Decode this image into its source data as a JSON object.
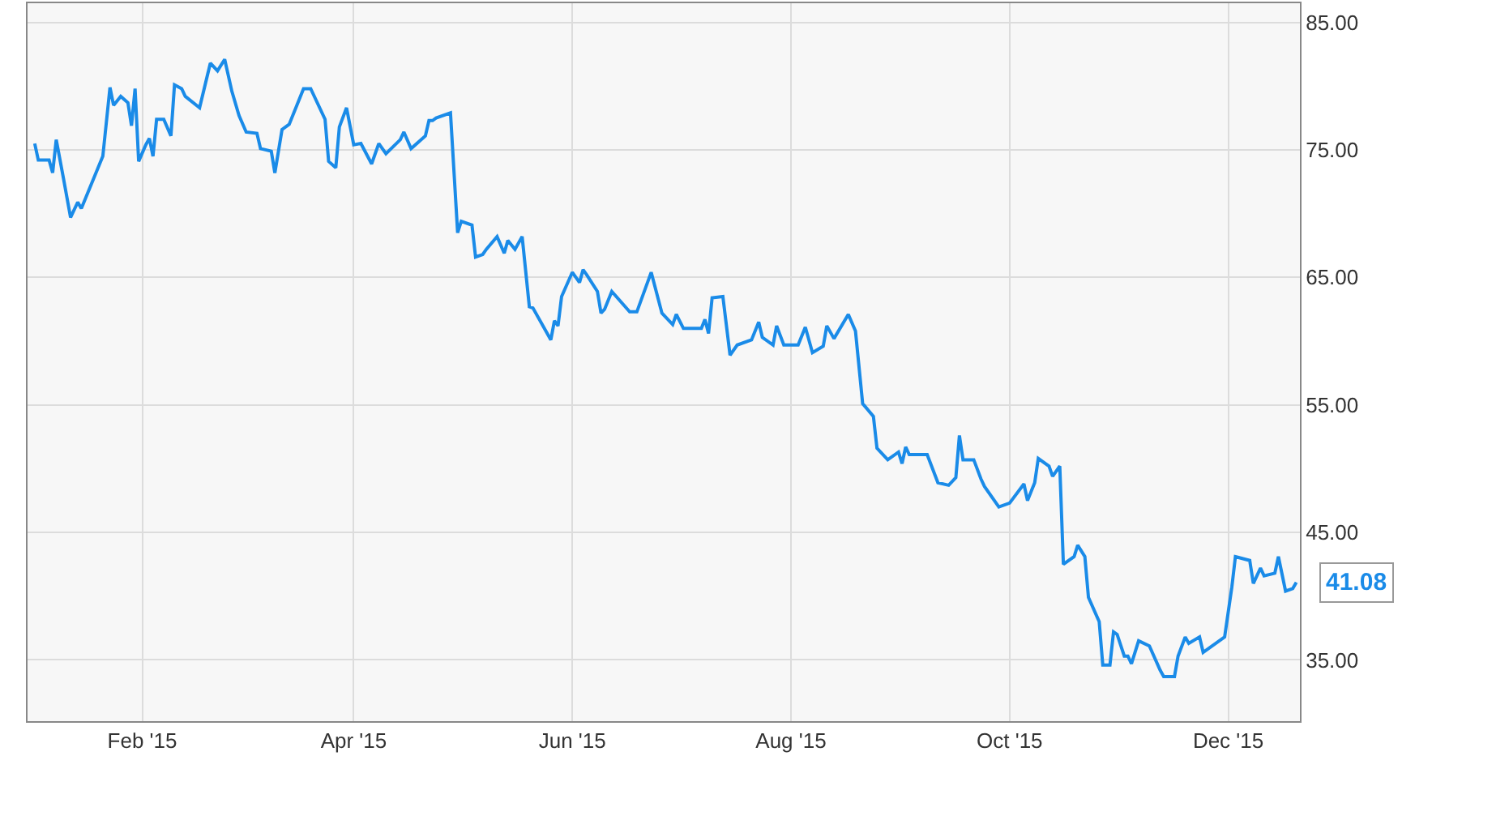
{
  "chart_data": {
    "type": "line",
    "x": [
      "2015-01-02",
      "2015-01-03",
      "2015-01-06",
      "2015-01-07",
      "2015-01-08",
      "2015-01-10",
      "2015-01-12",
      "2015-01-14",
      "2015-01-15",
      "2015-01-21",
      "2015-01-23",
      "2015-01-24",
      "2015-01-26",
      "2015-01-28",
      "2015-01-29",
      "2015-01-30",
      "2015-01-31",
      "2015-02-02",
      "2015-02-03",
      "2015-02-04",
      "2015-02-05",
      "2015-02-07",
      "2015-02-09",
      "2015-02-10",
      "2015-02-12",
      "2015-02-13",
      "2015-02-17",
      "2015-02-20",
      "2015-02-22",
      "2015-02-24",
      "2015-02-26",
      "2015-02-28",
      "2015-03-02",
      "2015-03-05",
      "2015-03-06",
      "2015-03-09",
      "2015-03-10",
      "2015-03-12",
      "2015-03-14",
      "2015-03-18",
      "2015-03-20",
      "2015-03-24",
      "2015-03-25",
      "2015-03-27",
      "2015-03-28",
      "2015-03-30",
      "2015-04-01",
      "2015-04-03",
      "2015-04-06",
      "2015-04-08",
      "2015-04-10",
      "2015-04-14",
      "2015-04-15",
      "2015-04-17",
      "2015-04-21",
      "2015-04-22",
      "2015-04-23",
      "2015-04-24",
      "2015-04-28",
      "2015-04-30",
      "2015-05-01",
      "2015-05-04",
      "2015-05-05",
      "2015-05-07",
      "2015-05-08",
      "2015-05-11",
      "2015-05-13",
      "2015-05-14",
      "2015-05-16",
      "2015-05-18",
      "2015-05-20",
      "2015-05-21",
      "2015-05-26",
      "2015-05-27",
      "2015-05-28",
      "2015-05-29",
      "2015-06-01",
      "2015-06-03",
      "2015-06-04",
      "2015-06-05",
      "2015-06-08",
      "2015-06-09",
      "2015-06-10",
      "2015-06-12",
      "2015-06-17",
      "2015-06-19",
      "2015-06-23",
      "2015-06-26",
      "2015-06-29",
      "2015-06-30",
      "2015-07-02",
      "2015-07-07",
      "2015-07-08",
      "2015-07-09",
      "2015-07-10",
      "2015-07-13",
      "2015-07-15",
      "2015-07-17",
      "2015-07-21",
      "2015-07-23",
      "2015-07-24",
      "2015-07-27",
      "2015-07-28",
      "2015-07-30",
      "2015-08-03",
      "2015-08-05",
      "2015-08-07",
      "2015-08-10",
      "2015-08-11",
      "2015-08-13",
      "2015-08-17",
      "2015-08-19",
      "2015-08-21",
      "2015-08-24",
      "2015-08-25",
      "2015-08-28",
      "2015-08-31",
      "2015-09-01",
      "2015-09-02",
      "2015-09-03",
      "2015-09-08",
      "2015-09-11",
      "2015-09-14",
      "2015-09-16",
      "2015-09-17",
      "2015-09-18",
      "2015-09-21",
      "2015-09-23",
      "2015-09-24",
      "2015-09-28",
      "2015-10-01",
      "2015-10-05",
      "2015-10-06",
      "2015-10-08",
      "2015-10-09",
      "2015-10-12",
      "2015-10-13",
      "2015-10-15",
      "2015-10-16",
      "2015-10-19",
      "2015-10-20",
      "2015-10-22",
      "2015-10-23",
      "2015-10-26",
      "2015-10-27",
      "2015-10-29",
      "2015-10-30",
      "2015-10-31",
      "2015-11-02",
      "2015-11-03",
      "2015-11-04",
      "2015-11-06",
      "2015-11-09",
      "2015-11-12",
      "2015-11-13",
      "2015-11-16",
      "2015-11-17",
      "2015-11-19",
      "2015-11-20",
      "2015-11-23",
      "2015-11-24",
      "2015-11-30",
      "2015-12-02",
      "2015-12-03",
      "2015-12-07",
      "2015-12-08",
      "2015-12-10",
      "2015-12-11",
      "2015-12-14",
      "2015-12-15",
      "2015-12-17",
      "2015-12-19",
      "2015-12-20"
    ],
    "series": [
      {
        "color": "#1a8be8",
        "values": [
          75.5,
          74.2,
          74.2,
          73.2,
          75.8,
          72.8,
          69.7,
          70.9,
          70.4,
          74.5,
          79.9,
          78.5,
          79.2,
          78.7,
          76.9,
          79.8,
          74.1,
          75.4,
          75.9,
          74.5,
          77.4,
          77.4,
          76.1,
          80.1,
          79.8,
          79.2,
          78.3,
          81.8,
          81.2,
          82.1,
          79.6,
          77.7,
          76.4,
          76.3,
          75.1,
          74.9,
          73.2,
          76.6,
          77.0,
          79.8,
          79.8,
          77.4,
          74.1,
          73.6,
          76.8,
          78.3,
          75.4,
          75.5,
          73.9,
          75.5,
          74.7,
          75.8,
          76.4,
          75.1,
          76.1,
          77.3,
          77.3,
          77.5,
          77.9,
          68.5,
          69.4,
          69.1,
          66.6,
          66.8,
          67.2,
          68.2,
          66.9,
          67.9,
          67.2,
          68.2,
          62.7,
          62.6,
          60.1,
          61.6,
          61.2,
          63.5,
          65.4,
          64.6,
          65.6,
          65.2,
          63.9,
          62.2,
          62.5,
          63.9,
          62.3,
          62.3,
          65.4,
          62.2,
          61.3,
          62.1,
          61.0,
          61.0,
          61.7,
          60.6,
          63.4,
          63.5,
          58.9,
          59.7,
          60.1,
          61.5,
          60.3,
          59.7,
          61.2,
          59.7,
          59.7,
          61.1,
          59.1,
          59.6,
          61.2,
          60.2,
          62.1,
          60.8,
          55.1,
          54.1,
          51.6,
          50.7,
          51.3,
          50.4,
          51.7,
          51.1,
          51.1,
          48.9,
          48.7,
          49.3,
          52.6,
          50.7,
          50.7,
          49.2,
          48.6,
          47.0,
          47.3,
          48.8,
          47.5,
          48.9,
          50.8,
          50.2,
          49.4,
          50.2,
          42.5,
          43.1,
          44.0,
          43.1,
          39.9,
          38.0,
          34.6,
          34.6,
          37.2,
          37.0,
          35.3,
          35.3,
          34.7,
          36.5,
          36.1,
          34.2,
          33.7,
          33.7,
          35.3,
          36.8,
          36.3,
          36.8,
          35.6,
          36.8,
          40.7,
          43.1,
          42.8,
          41.0,
          42.2,
          41.6,
          41.8,
          43.1,
          40.4,
          40.6,
          41.08
        ]
      }
    ],
    "xlim": [
      "2014-12-31",
      "2015-12-21"
    ],
    "xticks": [
      {
        "value": "2015-02-01",
        "label": "Feb '15"
      },
      {
        "value": "2015-04-01",
        "label": "Apr '15"
      },
      {
        "value": "2015-06-01",
        "label": "Jun '15"
      },
      {
        "value": "2015-08-01",
        "label": "Aug '15"
      },
      {
        "value": "2015-10-01",
        "label": "Oct '15"
      },
      {
        "value": "2015-12-01",
        "label": "Dec '15"
      }
    ],
    "ylim": [
      30.2,
      86.5
    ],
    "yticks": [
      {
        "value": 35,
        "label": "35.00"
      },
      {
        "value": 45,
        "label": "45.00"
      },
      {
        "value": 55,
        "label": "55.00"
      },
      {
        "value": 65,
        "label": "65.00"
      },
      {
        "value": 75,
        "label": "75.00"
      },
      {
        "value": 85,
        "label": "85.00"
      }
    ],
    "annotations": [
      {
        "text": "41.08",
        "x": "2015-12-20",
        "y": 41.08
      }
    ],
    "grid": true,
    "marker": "none",
    "line_style": "solid"
  }
}
